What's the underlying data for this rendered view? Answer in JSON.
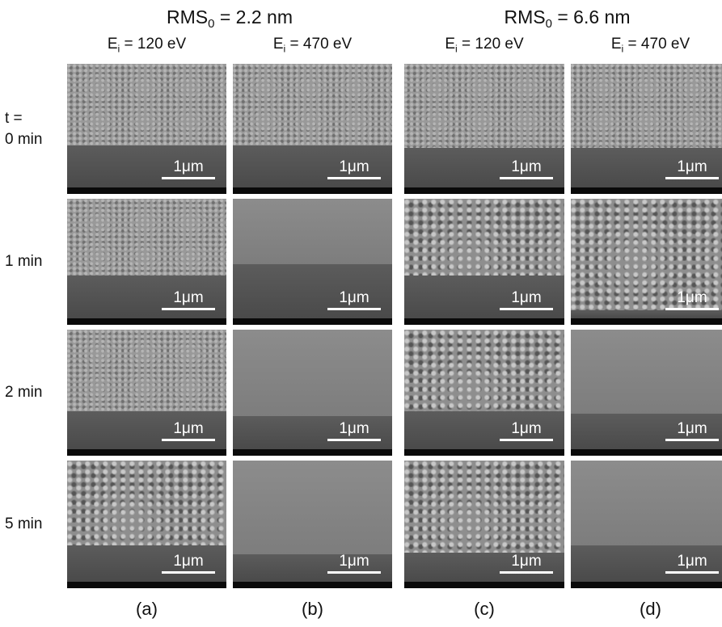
{
  "header": {
    "groups": [
      {
        "label": {
          "main": "RMS",
          "sub": "0",
          "rest": " = 2.2 nm"
        },
        "columns": [
          {
            "main": "E",
            "sub": "i",
            "rest": " = 120 eV"
          },
          {
            "main": "E",
            "sub": "i",
            "rest": " = 470 eV"
          }
        ]
      },
      {
        "label": {
          "main": "RMS",
          "sub": "0",
          "rest": " = 6.6 nm"
        },
        "columns": [
          {
            "main": "E",
            "sub": "i",
            "rest": " = 120 eV"
          },
          {
            "main": "E",
            "sub": "i",
            "rest": " = 470 eV"
          }
        ]
      }
    ]
  },
  "rows": [
    {
      "label": [
        "t =",
        "0 min"
      ],
      "scale_labels": [
        "1μm",
        "1μm",
        "1μm",
        "1μm"
      ]
    },
    {
      "label": [
        "1 min"
      ],
      "scale_labels": [
        "1μm",
        "1μm",
        "1μm",
        "1μm"
      ]
    },
    {
      "label": [
        "2 min"
      ],
      "scale_labels": [
        "1μm",
        "1μm",
        "1μm",
        "1μm"
      ]
    },
    {
      "label": [
        "5 min"
      ],
      "scale_labels": [
        "1μm",
        "1μm",
        "1μm",
        "1μm"
      ]
    }
  ],
  "column_letters": [
    "(a)",
    "(b)",
    "(c)",
    "(d)"
  ]
}
